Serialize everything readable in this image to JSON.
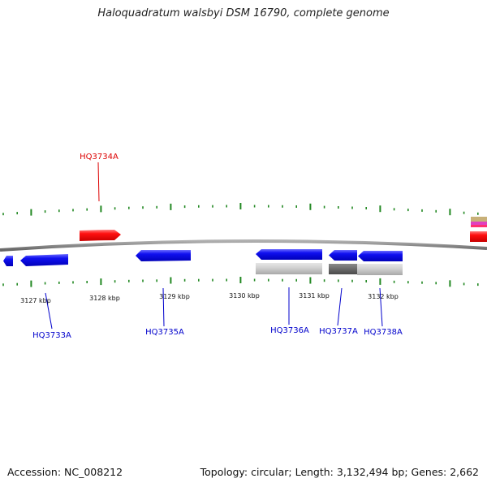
{
  "title": "Haloquadratum walsbyi DSM 16790, complete genome",
  "colors": {
    "forward_gene": "#ff0000",
    "reverse_gene": "#0000ee",
    "label_forward": "#dd0000",
    "label_reverse": "#0000cc",
    "backbone": "#888888",
    "tick": "#228822",
    "rna_light": "#c8c8c8",
    "rna_dark": "#6c6c6c"
  },
  "scale_labels": [
    "3127 kbp",
    "3128 kbp",
    "3129 kbp",
    "3130 kbp",
    "3131 kbp",
    "3132 kbp"
  ],
  "gene_labels": {
    "hq3734a": "HQ3734A",
    "hq3733a": "HQ3733A",
    "hq3735a": "HQ3735A",
    "hq3736a": "HQ3736A",
    "hq3737a": "HQ3737A",
    "hq3738a": "HQ3738A"
  },
  "footer": {
    "accession": "Accession: NC_008212",
    "summary": "Topology: circular; Length: 3,132,494 bp; Genes: 2,662"
  }
}
